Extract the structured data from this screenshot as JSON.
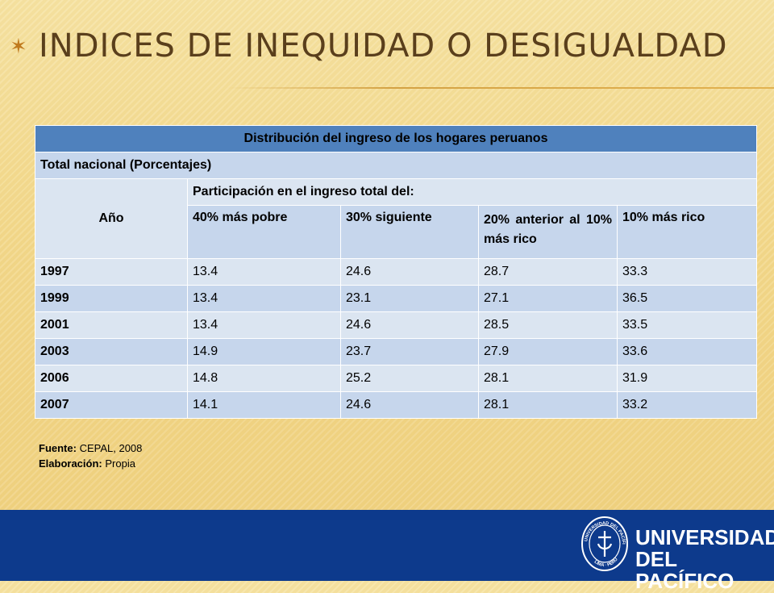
{
  "slide": {
    "title": "Indices de inequidad o desigualdad"
  },
  "table": {
    "caption": "Distribución del ingreso de los hogares peruanos",
    "subtitle": "Total nacional (Porcentajes)",
    "year_header": "Año",
    "group_header": "Participación en el ingreso total del:",
    "columns": [
      "40% más pobre",
      "30% siguiente",
      "20% anterior al 10% más rico",
      "10% más rico"
    ],
    "rows": [
      {
        "year": "1997",
        "values": [
          "13.4",
          "24.6",
          "28.7",
          "33.3"
        ]
      },
      {
        "year": "1999",
        "values": [
          "13.4",
          "23.1",
          "27.1",
          "36.5"
        ]
      },
      {
        "year": "2001",
        "values": [
          "13.4",
          "24.6",
          "28.5",
          "33.5"
        ]
      },
      {
        "year": "2003",
        "values": [
          "14.9",
          "23.7",
          "27.9",
          "33.6"
        ]
      },
      {
        "year": "2006",
        "values": [
          "14.8",
          "25.2",
          "28.1",
          "31.9"
        ]
      },
      {
        "year": "2007",
        "values": [
          "14.1",
          "24.6",
          "28.1",
          "33.2"
        ]
      }
    ]
  },
  "notes": {
    "source_label": "Fuente:",
    "source_value": "CEPAL, 2008",
    "author_label": "Elaboración:",
    "author_value": "Propia"
  },
  "footer": {
    "university_line1": "UNIVERSIDAD",
    "university_line2": "DEL PACÍFICO",
    "seal_text_top": "UNIVERSIDAD DEL PACÍFICO",
    "seal_text_bottom": "LIMA · PERÚ"
  },
  "colors": {
    "header_blue": "#4f81bd",
    "row_light": "#dbe5f1",
    "row_mid": "#c6d6ec",
    "footer_blue": "#0d3a8c",
    "title_brown": "#5a3f1c"
  }
}
